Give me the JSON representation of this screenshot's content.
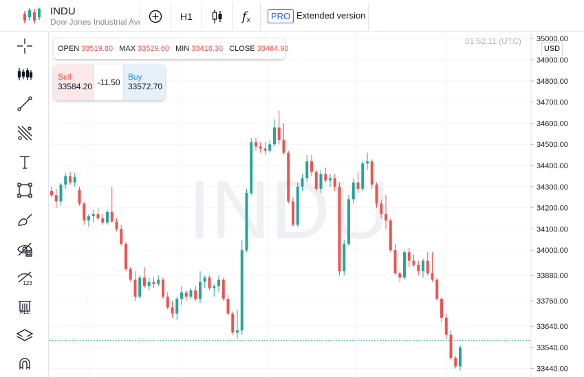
{
  "header": {
    "symbol": "INDU",
    "description": "Dow Jones Industrial Average",
    "interval_label": "H1",
    "fx_label": "f",
    "fx_sub": "x",
    "pro_badge": "PRO",
    "extended_label": "Extended version"
  },
  "toolbar": [
    {
      "name": "crosshair-icon"
    },
    {
      "name": "indicators-icon"
    },
    {
      "name": "trend-line-icon"
    },
    {
      "name": "fib-tools-icon"
    },
    {
      "name": "text-tool-icon"
    },
    {
      "name": "rectangle-tool-icon"
    },
    {
      "name": "brush-tool-icon"
    },
    {
      "name": "hide-drawings-icon"
    },
    {
      "name": "measure-icon",
      "label": "123"
    },
    {
      "name": "delete-drawings-icon",
      "label": "ALL"
    },
    {
      "name": "layers-icon"
    },
    {
      "name": "magnet-icon"
    }
  ],
  "ohlc": {
    "open_label": "OPEN",
    "open": "33519.80",
    "max_label": "MAX",
    "max": "33529.60",
    "min_label": "MIN",
    "min": "33416.30",
    "close_label": "CLOSE",
    "close": "33464.90"
  },
  "trade": {
    "sell_label": "Sell",
    "sell_price": "33584.20",
    "change": "-11.50",
    "buy_label": "Buy",
    "buy_price": "33572.70"
  },
  "chart_meta": {
    "time": "01:52:11 (UTC)",
    "currency": "USD",
    "watermark": "INDU"
  },
  "colors": {
    "up": "#26a69a",
    "down": "#ef5350",
    "grid": "#f0f3fa",
    "price_line": "#26a69a"
  },
  "chart_data": {
    "type": "candlestick",
    "title": "",
    "y_ticks": [
      "35000.00",
      "34900.00",
      "34800.00",
      "34700.00",
      "34600.00",
      "34500.00",
      "34400.00",
      "34300.00",
      "34200.00",
      "34100.00",
      "34000.00",
      "33880.00",
      "33760.00",
      "33640.00",
      "33540.00",
      "33440.00"
    ],
    "ylim": [
      33400,
      35030
    ],
    "current_price": 33573,
    "candles": [
      [
        34280,
        34300,
        34250,
        34260
      ],
      [
        34260,
        34290,
        34200,
        34230
      ],
      [
        34230,
        34320,
        34210,
        34310
      ],
      [
        34310,
        34365,
        34290,
        34350
      ],
      [
        34350,
        34370,
        34310,
        34320
      ],
      [
        34320,
        34365,
        34300,
        34345
      ],
      [
        34285,
        34300,
        34210,
        34220
      ],
      [
        34220,
        34230,
        34120,
        34140
      ],
      [
        34140,
        34170,
        34110,
        34160
      ],
      [
        34160,
        34190,
        34130,
        34170
      ],
      [
        34170,
        34200,
        34140,
        34150
      ],
      [
        34150,
        34170,
        34120,
        34130
      ],
      [
        34130,
        34190,
        34120,
        34180
      ],
      [
        34180,
        34300,
        34130,
        34135
      ],
      [
        34135,
        34150,
        34090,
        34100
      ],
      [
        34100,
        34120,
        34020,
        34030
      ],
      [
        34030,
        34040,
        33900,
        33910
      ],
      [
        33910,
        33920,
        33850,
        33860
      ],
      [
        33860,
        33900,
        33760,
        33780
      ],
      [
        33780,
        33880,
        33770,
        33870
      ],
      [
        33870,
        33920,
        33820,
        33830
      ],
      [
        33830,
        33870,
        33810,
        33850
      ],
      [
        33850,
        33870,
        33820,
        33840
      ],
      [
        33840,
        33880,
        33830,
        33860
      ],
      [
        33860,
        33870,
        33770,
        33780
      ],
      [
        33780,
        33800,
        33720,
        33730
      ],
      [
        33730,
        33760,
        33680,
        33700
      ],
      [
        33700,
        33780,
        33670,
        33770
      ],
      [
        33770,
        33830,
        33740,
        33800
      ],
      [
        33800,
        33810,
        33760,
        33780
      ],
      [
        33780,
        33820,
        33770,
        33810
      ],
      [
        33810,
        33830,
        33760,
        33770
      ],
      [
        33770,
        33900,
        33750,
        33850
      ],
      [
        33850,
        33880,
        33820,
        33870
      ],
      [
        33870,
        33880,
        33810,
        33820
      ],
      [
        33820,
        33840,
        33780,
        33830
      ],
      [
        33830,
        33880,
        33800,
        33860
      ],
      [
        33860,
        33870,
        33760,
        33770
      ],
      [
        33770,
        33790,
        33690,
        33700
      ],
      [
        33700,
        33710,
        33600,
        33610
      ],
      [
        33610,
        33720,
        33580,
        33620
      ],
      [
        33620,
        34050,
        33600,
        34000
      ],
      [
        34000,
        34290,
        33990,
        34270
      ],
      [
        34270,
        34530,
        34260,
        34510
      ],
      [
        34510,
        34530,
        34470,
        34490
      ],
      [
        34490,
        34510,
        34460,
        34480
      ],
      [
        34480,
        34510,
        34450,
        34470
      ],
      [
        34470,
        34520,
        34460,
        34500
      ],
      [
        34500,
        34620,
        34490,
        34580
      ],
      [
        34580,
        34660,
        34500,
        34520
      ],
      [
        34520,
        34600,
        34450,
        34460
      ],
      [
        34460,
        34470,
        34220,
        34230
      ],
      [
        34230,
        34250,
        34110,
        34120
      ],
      [
        34120,
        34320,
        34110,
        34300
      ],
      [
        34300,
        34360,
        34280,
        34340
      ],
      [
        34340,
        34450,
        34320,
        34420
      ],
      [
        34420,
        34450,
        34350,
        34370
      ],
      [
        34370,
        34380,
        34280,
        34290
      ],
      [
        34290,
        34380,
        34270,
        34360
      ],
      [
        34360,
        34390,
        34320,
        34330
      ],
      [
        34330,
        34360,
        34300,
        34340
      ],
      [
        34340,
        34360,
        34280,
        34300
      ],
      [
        34300,
        34320,
        33880,
        33900
      ],
      [
        33900,
        34050,
        33880,
        34030
      ],
      [
        34030,
        34260,
        34020,
        34240
      ],
      [
        34240,
        34340,
        34220,
        34320
      ],
      [
        34320,
        34370,
        34270,
        34290
      ],
      [
        34290,
        34420,
        34280,
        34410
      ],
      [
        34410,
        34460,
        34380,
        34420
      ],
      [
        34420,
        34430,
        34290,
        34310
      ],
      [
        34310,
        34320,
        34200,
        34220
      ],
      [
        34220,
        34240,
        34150,
        34170
      ],
      [
        34170,
        34260,
        34100,
        34140
      ],
      [
        34140,
        34150,
        33990,
        34000
      ],
      [
        34000,
        34030,
        33880,
        33890
      ],
      [
        33890,
        33900,
        33850,
        33870
      ],
      [
        33870,
        34000,
        33860,
        33990
      ],
      [
        33990,
        34010,
        33920,
        33950
      ],
      [
        33950,
        33980,
        33920,
        33930
      ],
      [
        33930,
        33950,
        33880,
        33900
      ],
      [
        33900,
        33960,
        33870,
        33950
      ],
      [
        33950,
        33990,
        33880,
        33890
      ],
      [
        33890,
        33990,
        33850,
        33860
      ],
      [
        33860,
        33870,
        33760,
        33770
      ],
      [
        33770,
        33780,
        33660,
        33680
      ],
      [
        33680,
        33700,
        33580,
        33600
      ],
      [
        33600,
        33620,
        33480,
        33490
      ],
      [
        33490,
        33500,
        33440,
        33450
      ],
      [
        33450,
        33550,
        33430,
        33540
      ]
    ]
  }
}
